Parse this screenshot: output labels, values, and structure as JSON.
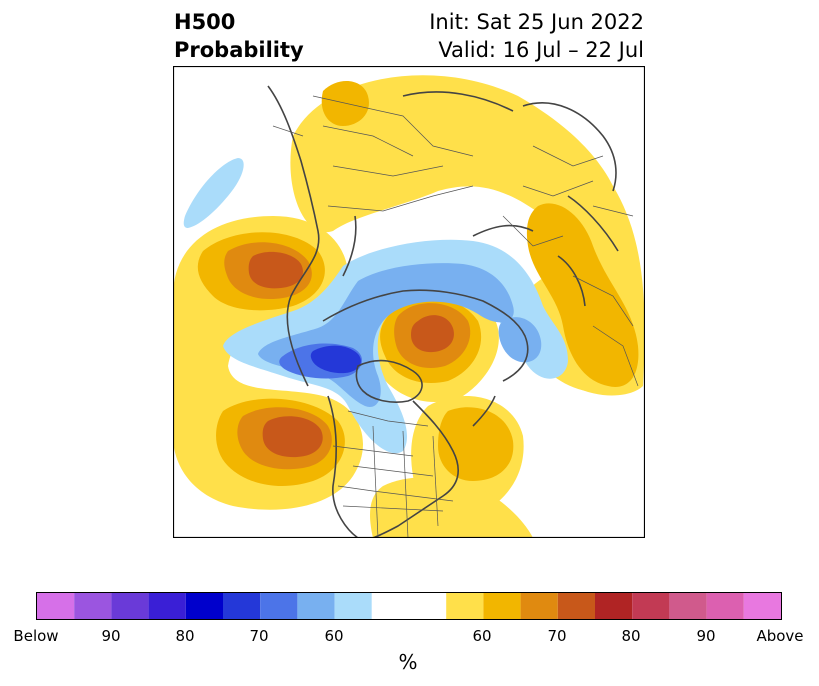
{
  "header": {
    "title_line1": "H500",
    "title_line2": "Probability",
    "init": "Init: Sat 25 Jun 2022",
    "valid": "Valid: 16 Jul – 22 Jul"
  },
  "colorbar": {
    "colors": [
      "#d670e8",
      "#9b55e0",
      "#6a3ad8",
      "#3a1fd6",
      "#0000cc",
      "#2438d8",
      "#4c74e8",
      "#78b0f0",
      "#aadcfa",
      "#ffffff",
      "#ffe04a",
      "#f2b600",
      "#e08a10",
      "#c8581a",
      "#b02424",
      "#c23a54",
      "#d05a8c",
      "#dc60b0",
      "#e878e0"
    ],
    "ticks": [
      "Below",
      "90",
      "80",
      "70",
      "60",
      "60",
      "70",
      "80",
      "90",
      "Above"
    ],
    "unit": "%"
  },
  "map": {
    "colors": {
      "above_60": "#ffe04a",
      "above_65": "#f2b600",
      "above_70": "#e08a10",
      "above_75": "#c8581a",
      "below_60": "#aadcfa",
      "below_65": "#78b0f0",
      "below_70": "#4c74e8",
      "below_75": "#2438d8"
    }
  }
}
